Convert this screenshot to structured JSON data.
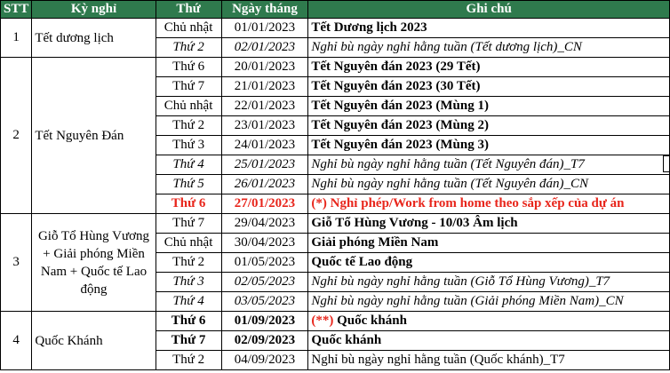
{
  "headers": {
    "stt": "STT",
    "holiday": "Kỳ nghỉ",
    "weekday": "Thứ",
    "date": "Ngày tháng",
    "note": "Ghi chú"
  },
  "groups": [
    {
      "stt": "1",
      "holiday": "Tết dương lịch",
      "rows": [
        {
          "weekday": "Chủ nhật",
          "date": "01/01/2023",
          "note": "Tết Dương lịch 2023",
          "style": "holiday"
        },
        {
          "weekday": "Thứ 2",
          "date": "02/01/2023",
          "note": "Nghỉ bù ngày nghỉ hằng tuần (Tết dương lịch)_CN",
          "style": "comp"
        }
      ]
    },
    {
      "stt": "2",
      "holiday": "Tết Nguyên Đán",
      "rows": [
        {
          "weekday": "Thứ 6",
          "date": "20/01/2023",
          "note": "Tết Nguyên đán 2023 (29 Tết)",
          "style": "holiday"
        },
        {
          "weekday": "Thứ 7",
          "date": "21/01/2023",
          "note": "Tết Nguyên đán 2023 (30 Tết)",
          "style": "holiday"
        },
        {
          "weekday": "Chủ nhật",
          "date": "22/01/2023",
          "note": "Tết Nguyên đán 2023 (Mùng 1)",
          "style": "holiday"
        },
        {
          "weekday": "Thứ 2",
          "date": "23/01/2023",
          "note": "Tết Nguyên đán 2023 (Mùng 2)",
          "style": "holiday"
        },
        {
          "weekday": "Thứ 3",
          "date": "24/01/2023",
          "note": "Tết Nguyên đán 2023 (Mùng 3)",
          "style": "holiday"
        },
        {
          "weekday": "Thứ 4",
          "date": "25/01/2023",
          "note": "Nghỉ bù ngày nghỉ hằng tuần (Tết Nguyên đán)_T7",
          "style": "comp"
        },
        {
          "weekday": "Thứ 5",
          "date": "26/01/2023",
          "note": "Nghỉ bù ngày nghỉ hằng tuần (Tết Nguyên đán)_CN",
          "style": "comp"
        },
        {
          "weekday": "Thứ 6",
          "date": "27/01/2023",
          "note": "(*) Nghỉ phép/Work from home theo sắp xếp của dự án",
          "style": "red"
        }
      ]
    },
    {
      "stt": "3",
      "holiday": "Giỗ Tổ Hùng Vương + Giải phóng Miền Nam + Quốc tế Lao động",
      "rows": [
        {
          "weekday": "Thứ 7",
          "date": "29/04/2023",
          "note": "Giỗ Tổ Hùng Vương - 10/03 Âm lịch",
          "style": "holiday"
        },
        {
          "weekday": "Chủ nhật",
          "date": "30/04/2023",
          "note": "Giải phóng Miền Nam",
          "style": "holiday"
        },
        {
          "weekday": "Thứ 2",
          "date": "01/05/2023",
          "note": "Quốc tế Lao động",
          "style": "holiday"
        },
        {
          "weekday": "Thứ 3",
          "date": "02/05/2023",
          "note": "Nghỉ bù ngày nghỉ hằng tuần (Giỗ Tổ Hùng Vương)_T7",
          "style": "comp"
        },
        {
          "weekday": "Thứ 4",
          "date": "03/05/2023",
          "note": "Nghỉ bù ngày nghỉ hằng tuần (Giải phóng Miền Nam)_CN",
          "style": "comp"
        }
      ]
    },
    {
      "stt": "4",
      "holiday": "Quốc Khánh",
      "rows": [
        {
          "weekday": "Thứ 6",
          "date": "01/09/2023",
          "note": "Quốc khánh",
          "note_prefix": "(**)",
          "style": "bold-red-prefix"
        },
        {
          "weekday": "Thứ 7",
          "date": "02/09/2023",
          "note": "Quốc khánh",
          "style": "bold-all"
        },
        {
          "weekday": "Thứ 2",
          "date": "04/09/2023",
          "note": "Nghỉ bù ngày nghỉ hằng tuần (Quốc khánh)_T7",
          "style": "plain"
        }
      ]
    }
  ],
  "colors": {
    "header_bg": "#2f7a4d",
    "header_text": "#ffffff",
    "highlight_red": "#e8261c"
  }
}
